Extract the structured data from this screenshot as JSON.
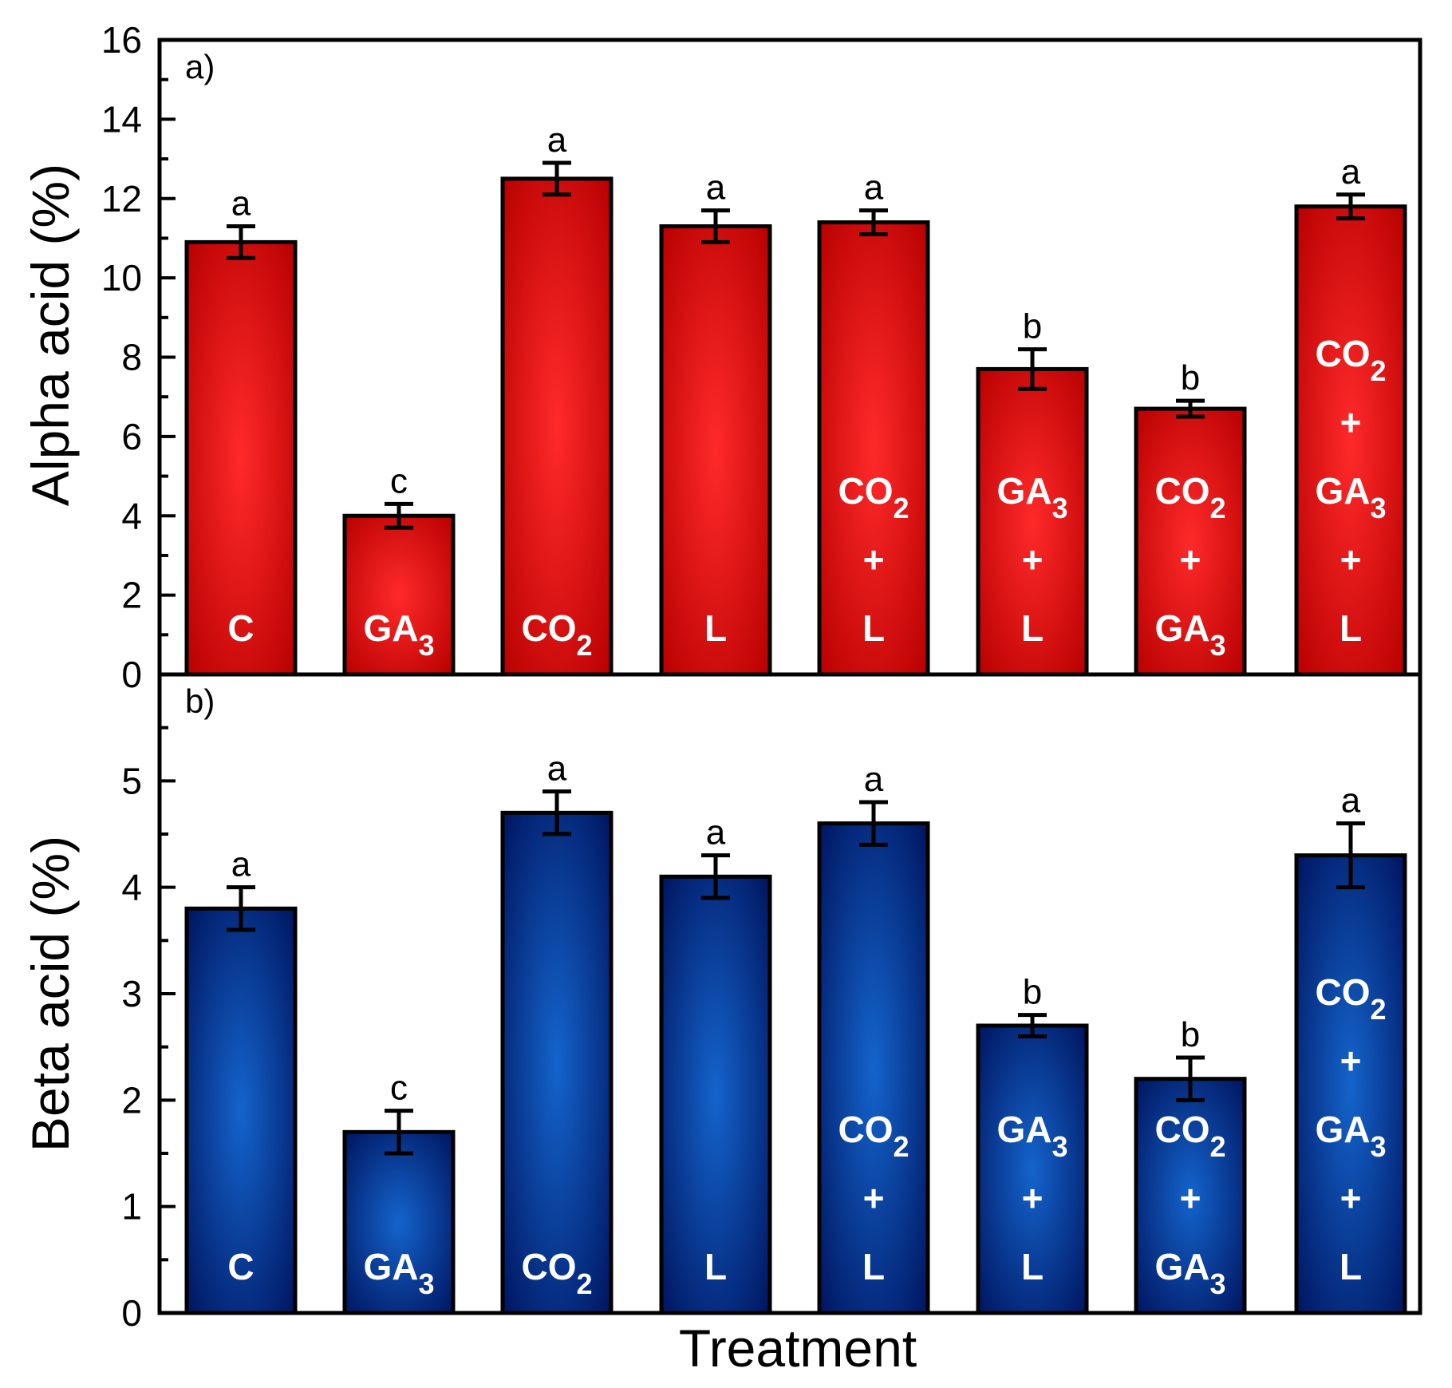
{
  "chart_data": [
    {
      "type": "bar",
      "panel_label": "a)",
      "ylabel": "Alpha acid (%)",
      "xlabel": "Treatment",
      "ylim": [
        0,
        16
      ],
      "major_ticks": [
        0,
        2,
        4,
        6,
        8,
        10,
        12,
        14,
        16
      ],
      "minor_step": 1,
      "bar_color": "#e8000b",
      "categories": [
        {
          "lines": [
            {
              "text": "C"
            }
          ]
        },
        {
          "lines": [
            {
              "text": "GA",
              "sub": "3"
            }
          ]
        },
        {
          "lines": [
            {
              "text": "CO",
              "sub": "2"
            }
          ]
        },
        {
          "lines": [
            {
              "text": "L"
            }
          ]
        },
        {
          "lines": [
            {
              "text": "CO",
              "sub": "2"
            },
            {
              "text": "+"
            },
            {
              "text": "L"
            }
          ]
        },
        {
          "lines": [
            {
              "text": "GA",
              "sub": "3"
            },
            {
              "text": "+"
            },
            {
              "text": "L"
            }
          ]
        },
        {
          "lines": [
            {
              "text": "CO",
              "sub": "2"
            },
            {
              "text": "+"
            },
            {
              "text": "GA",
              "sub": "3"
            }
          ]
        },
        {
          "lines": [
            {
              "text": "CO",
              "sub": "2"
            },
            {
              "text": "+"
            },
            {
              "text": "GA",
              "sub": "3"
            },
            {
              "text": "+"
            },
            {
              "text": "L"
            }
          ]
        }
      ],
      "values": [
        10.9,
        4.0,
        12.5,
        11.3,
        11.4,
        7.7,
        6.7,
        11.8
      ],
      "errors": [
        0.4,
        0.3,
        0.4,
        0.4,
        0.3,
        0.5,
        0.2,
        0.3
      ],
      "letters": [
        "a",
        "c",
        "a",
        "a",
        "a",
        "b",
        "b",
        "a"
      ]
    },
    {
      "type": "bar",
      "panel_label": "b)",
      "ylabel": "Beta acid (%)",
      "xlabel": "Treatment",
      "ylim": [
        0,
        6
      ],
      "major_ticks": [
        0,
        1,
        2,
        3,
        4,
        5
      ],
      "minor_step": 0.5,
      "bar_color": "#0a3d99",
      "categories": [
        {
          "lines": [
            {
              "text": "C"
            }
          ]
        },
        {
          "lines": [
            {
              "text": "GA",
              "sub": "3"
            }
          ]
        },
        {
          "lines": [
            {
              "text": "CO",
              "sub": "2"
            }
          ]
        },
        {
          "lines": [
            {
              "text": "L"
            }
          ]
        },
        {
          "lines": [
            {
              "text": "CO",
              "sub": "2"
            },
            {
              "text": "+"
            },
            {
              "text": "L"
            }
          ]
        },
        {
          "lines": [
            {
              "text": "GA",
              "sub": "3"
            },
            {
              "text": "+"
            },
            {
              "text": "L"
            }
          ]
        },
        {
          "lines": [
            {
              "text": "CO",
              "sub": "2"
            },
            {
              "text": "+"
            },
            {
              "text": "GA",
              "sub": "3"
            }
          ]
        },
        {
          "lines": [
            {
              "text": "CO",
              "sub": "2"
            },
            {
              "text": "+"
            },
            {
              "text": "GA",
              "sub": "3"
            },
            {
              "text": "+"
            },
            {
              "text": "L"
            }
          ]
        }
      ],
      "values": [
        3.8,
        1.7,
        4.7,
        4.1,
        4.6,
        2.7,
        2.2,
        4.3
      ],
      "errors": [
        0.2,
        0.2,
        0.2,
        0.2,
        0.2,
        0.1,
        0.2,
        0.3
      ],
      "letters": [
        "a",
        "c",
        "a",
        "a",
        "a",
        "b",
        "b",
        "a"
      ]
    }
  ],
  "colors": {
    "frame": "#000000",
    "red_dark": "#b80000",
    "red_light": "#ff1a1a",
    "blue_dark": "#001a66",
    "blue_light": "#1060c8"
  }
}
